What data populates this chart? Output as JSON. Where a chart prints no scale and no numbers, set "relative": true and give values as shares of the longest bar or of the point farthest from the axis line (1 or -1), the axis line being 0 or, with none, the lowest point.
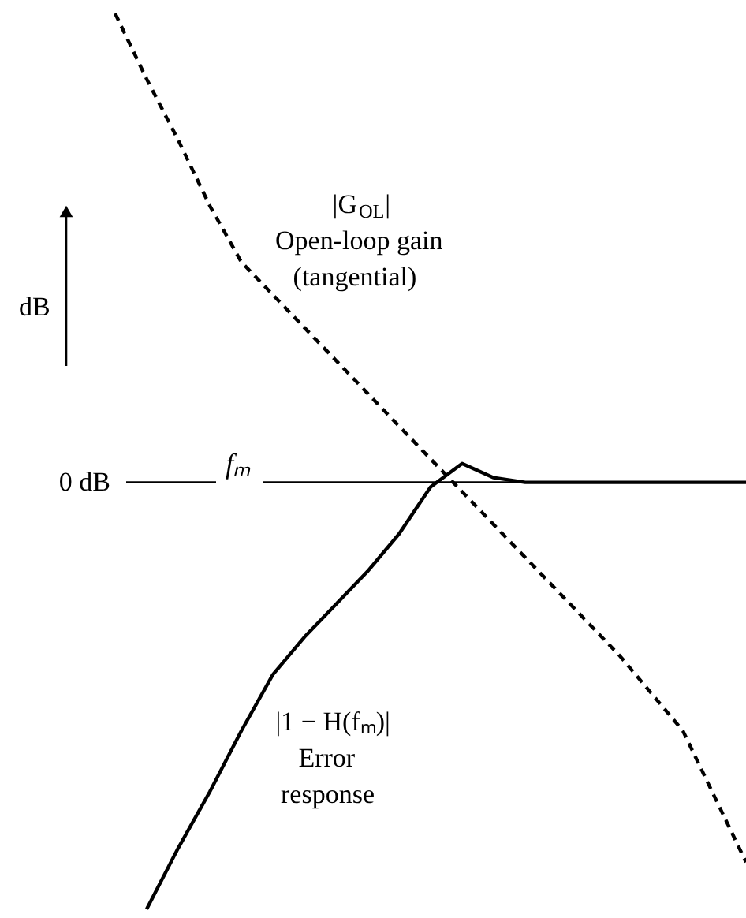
{
  "chart_data": {
    "type": "line",
    "relative": true,
    "ylabel": "dB",
    "categories": [
      null,
      null,
      null,
      null,
      null,
      null,
      null,
      null,
      null,
      null,
      null,
      null,
      null,
      null,
      null,
      null,
      null,
      null,
      null,
      null,
      null
    ],
    "series": [
      {
        "name": "|G$_{OL}$|\nOpen-loop gain\n(tangential)",
        "color": "#000000",
        "line_style": "dashed",
        "values": [
          1.0,
          0.86,
          0.73,
          0.59,
          0.47,
          0.4,
          0.33,
          0.26,
          0.19,
          0.12,
          0.05,
          -0.02,
          -0.09,
          -0.16,
          -0.23,
          -0.3,
          -0.37,
          -0.45,
          -0.53,
          -0.67,
          -0.81
        ]
      },
      {
        "name": "|1 − H(fₘ)|\nError\nresponse",
        "color": "#000000",
        "line_style": "solid",
        "values": [
          null,
          -0.91,
          -0.78,
          -0.66,
          -0.53,
          -0.41,
          -0.33,
          -0.26,
          -0.19,
          -0.11,
          -0.01,
          0.04,
          0.01,
          0.0,
          0.0,
          0.0,
          0.0,
          0.0,
          0.0,
          0.0,
          0.0
        ]
      }
    ],
    "ref_lines": [
      {
        "axis": "y",
        "value": 0,
        "label": "0 dB"
      }
    ],
    "annotations": [
      "fₘ"
    ]
  }
}
